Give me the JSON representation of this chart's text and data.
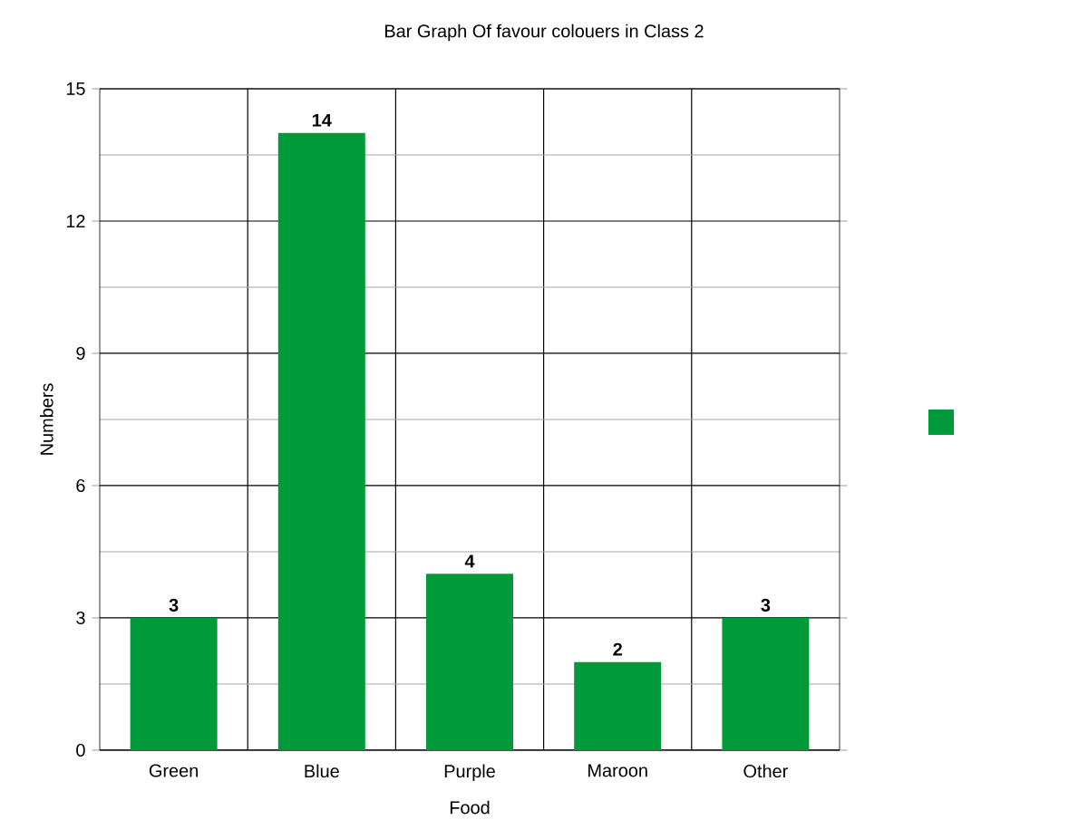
{
  "chart_data": {
    "type": "bar",
    "title": "Bar Graph Of favour colouers in Class 2",
    "xlabel": "Food",
    "ylabel": "Numbers",
    "categories": [
      "Green",
      "Blue",
      "Purple",
      "Maroon",
      "Other"
    ],
    "values": [
      3,
      14,
      4,
      2,
      3
    ],
    "color": "#009a3a",
    "ylim": [
      0,
      15
    ],
    "yticks": [
      0,
      3,
      6,
      9,
      12,
      15
    ],
    "grid": true,
    "data_labels": true
  }
}
